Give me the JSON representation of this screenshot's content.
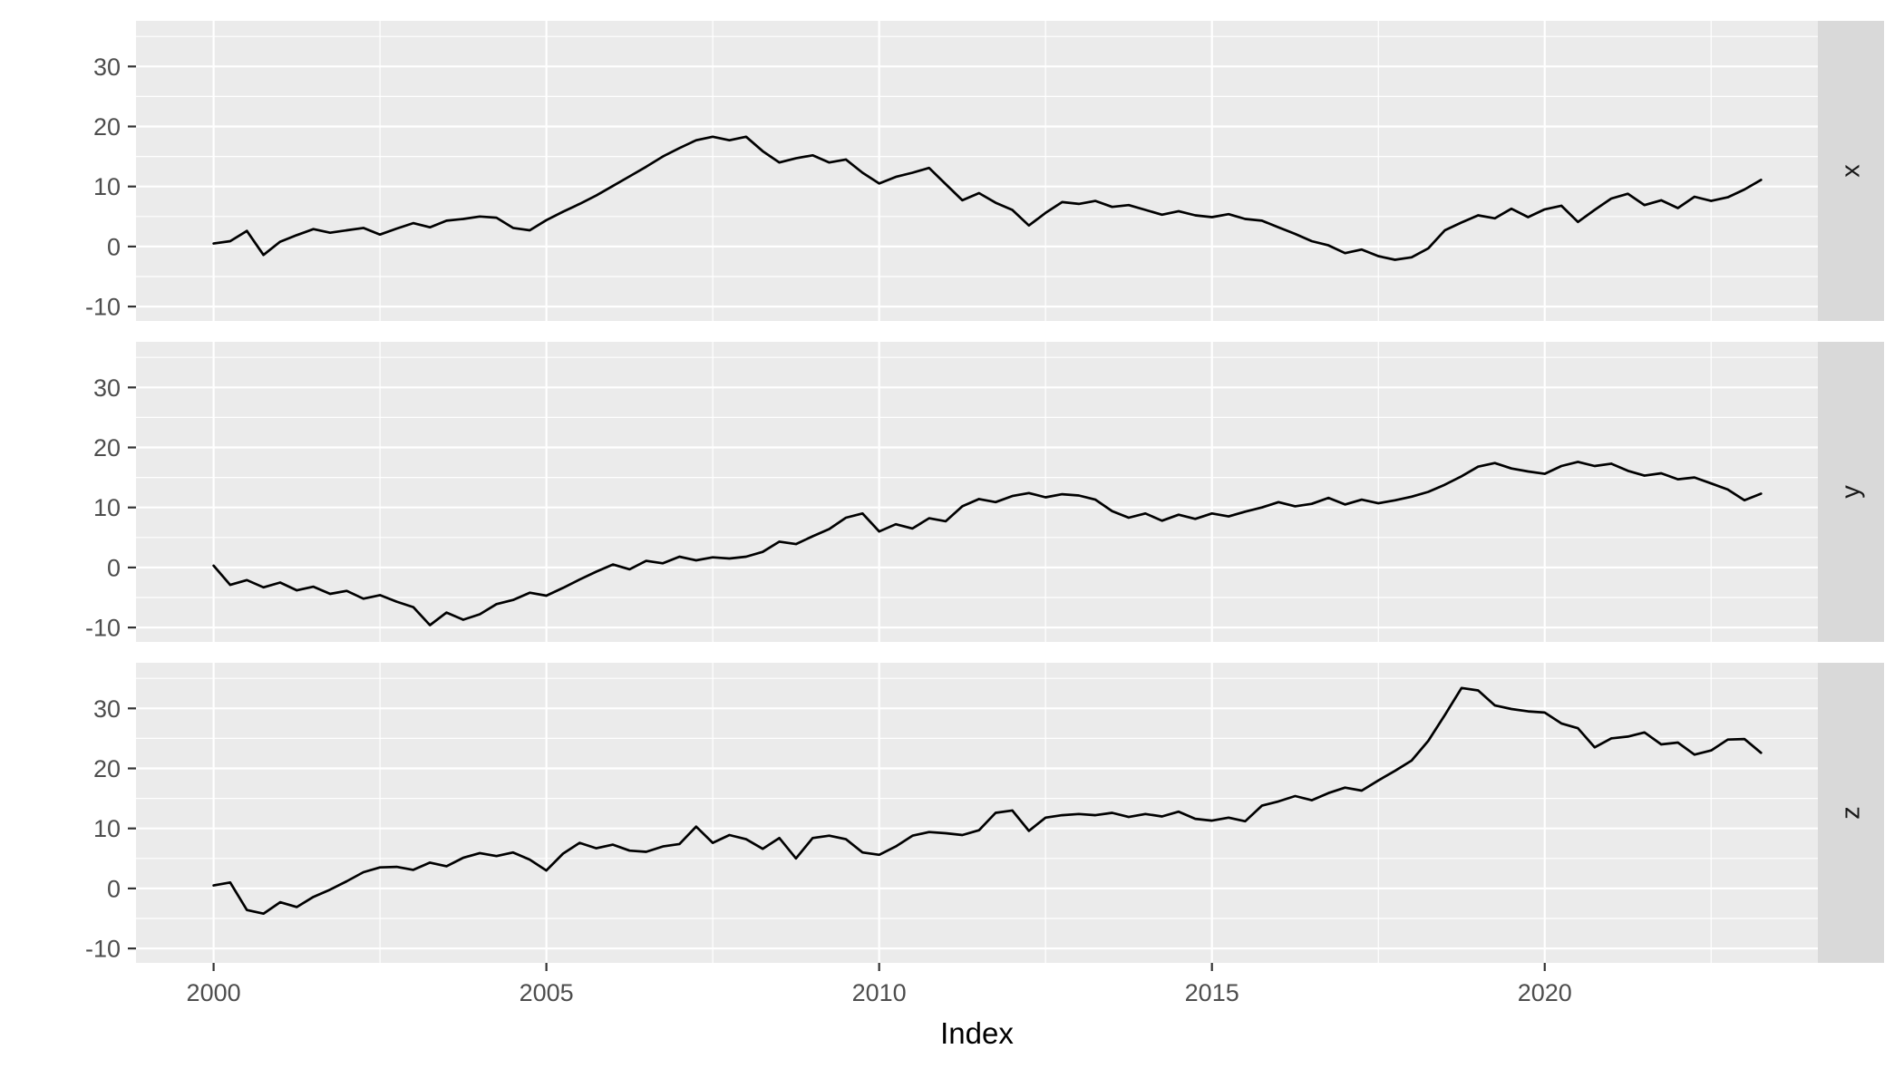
{
  "figure": {
    "kind": "ggplot2 faceted time-series plot",
    "background": "#FFFFFF"
  },
  "colors": {
    "panel_background": "#EBEBEB",
    "strip_background": "#D9D9D9",
    "grid_line": "#FFFFFF",
    "series_line": "#000000",
    "tick_mark": "#333333",
    "tick_text": "#4D4D4D",
    "strip_text": "#1A1A1A",
    "axis_title_text": "#000000"
  },
  "chart_data": {
    "type": "line",
    "title": "",
    "xlabel": "Index",
    "ylabel": "",
    "legend_position": "none",
    "facet_layout": "3 rows (x, y, z), shared x axis, right-side strips, strip text rotated -90",
    "grid": "white major and minor gridlines on grey panel",
    "xlim": [
      1998.834,
      2024.104
    ],
    "ylim": [
      -12.4,
      37.6
    ],
    "x_ticks": [
      2000,
      2005,
      2010,
      2015,
      2020
    ],
    "x_tick_labels": [
      "2000",
      "2005",
      "2010",
      "2015",
      "2020"
    ],
    "x_minor": [
      2002.5,
      2007.5,
      2012.5,
      2017.5,
      2022.5
    ],
    "y_ticks": [
      -10,
      0,
      10,
      20,
      30
    ],
    "y_tick_labels": [
      "-10",
      "0",
      "10",
      "20",
      "30"
    ],
    "y_minor": [
      -5,
      5,
      15,
      25,
      35
    ],
    "x_start": 2000.0,
    "x_step": 0.25,
    "facets": [
      {
        "label": "x",
        "values": [
          0.5,
          0.9,
          2.6,
          -1.4,
          0.8,
          1.9,
          2.9,
          2.3,
          2.7,
          3.1,
          2.0,
          3.0,
          3.9,
          3.2,
          4.3,
          4.6,
          5.0,
          4.8,
          3.1,
          2.7,
          4.4,
          5.8,
          7.1,
          8.5,
          10.1,
          11.7,
          13.3,
          15.0,
          16.4,
          17.7,
          18.3,
          17.7,
          18.3,
          15.9,
          14.0,
          14.7,
          15.2,
          14.0,
          14.5,
          12.3,
          10.5,
          11.6,
          12.3,
          13.1,
          10.4,
          7.7,
          8.9,
          7.3,
          6.1,
          3.5,
          5.6,
          7.4,
          7.1,
          7.6,
          6.6,
          6.9,
          6.1,
          5.3,
          5.9,
          5.2,
          4.9,
          5.4,
          4.6,
          4.3,
          3.2,
          2.1,
          0.9,
          0.2,
          -1.1,
          -0.5,
          -1.6,
          -2.2,
          -1.8,
          -0.3,
          2.7,
          4.0,
          5.2,
          4.7,
          6.3,
          4.9,
          6.2,
          6.8,
          4.1,
          6.1,
          8.0,
          8.8,
          6.9,
          7.7,
          6.4,
          8.3,
          7.6,
          8.2,
          9.5,
          11.1
        ]
      },
      {
        "label": "y",
        "values": [
          0.3,
          -2.9,
          -2.1,
          -3.3,
          -2.5,
          -3.8,
          -3.2,
          -4.4,
          -3.9,
          -5.2,
          -4.6,
          -5.7,
          -6.6,
          -9.6,
          -7.5,
          -8.7,
          -7.8,
          -6.1,
          -5.4,
          -4.2,
          -4.7,
          -3.4,
          -2.0,
          -0.7,
          0.5,
          -0.3,
          1.1,
          0.7,
          1.8,
          1.2,
          1.7,
          1.5,
          1.8,
          2.6,
          4.3,
          3.9,
          5.2,
          6.4,
          8.3,
          9.0,
          6.0,
          7.2,
          6.5,
          8.2,
          7.7,
          10.2,
          11.4,
          10.9,
          11.9,
          12.4,
          11.7,
          12.2,
          12.0,
          11.3,
          9.4,
          8.3,
          9.0,
          7.8,
          8.8,
          8.1,
          9.0,
          8.5,
          9.3,
          10.0,
          10.9,
          10.2,
          10.6,
          11.6,
          10.5,
          11.3,
          10.7,
          11.2,
          11.8,
          12.6,
          13.8,
          15.2,
          16.8,
          17.4,
          16.5,
          16.0,
          15.6,
          16.9,
          17.6,
          16.9,
          17.3,
          16.1,
          15.3,
          15.7,
          14.7,
          15.0,
          14.0,
          13.0,
          11.2,
          12.3
        ]
      },
      {
        "label": "z",
        "values": [
          0.5,
          1.0,
          -3.6,
          -4.2,
          -2.3,
          -3.1,
          -1.4,
          -0.2,
          1.2,
          2.7,
          3.5,
          3.6,
          3.1,
          4.3,
          3.7,
          5.1,
          5.9,
          5.4,
          6.0,
          4.8,
          3.0,
          5.8,
          7.6,
          6.7,
          7.3,
          6.3,
          6.1,
          7.0,
          7.4,
          10.3,
          7.6,
          8.9,
          8.2,
          6.6,
          8.4,
          5.0,
          8.4,
          8.8,
          8.2,
          6.0,
          5.6,
          7.0,
          8.8,
          9.4,
          9.2,
          8.9,
          9.7,
          12.6,
          13.0,
          9.6,
          11.8,
          12.2,
          12.4,
          12.2,
          12.6,
          11.9,
          12.4,
          12.0,
          12.8,
          11.6,
          11.3,
          11.8,
          11.2,
          13.8,
          14.5,
          15.4,
          14.7,
          15.9,
          16.8,
          16.3,
          18.0,
          19.6,
          21.3,
          24.6,
          28.9,
          33.4,
          33.0,
          30.5,
          29.9,
          29.5,
          29.3,
          27.5,
          26.7,
          23.5,
          25.0,
          25.3,
          26.0,
          24.0,
          24.3,
          22.3,
          23.0,
          24.8,
          24.9,
          22.6
        ]
      }
    ]
  }
}
